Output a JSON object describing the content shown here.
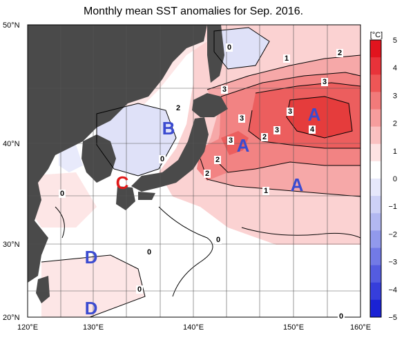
{
  "title": "Monthly mean SST anomalies for Sep. 2016.",
  "lat_labels": [
    "50°N",
    "40°N",
    "30°N",
    "20°N"
  ],
  "lon_labels": [
    "120°E",
    "130°E",
    "140°E",
    "150°E",
    "160°E"
  ],
  "colorbar": {
    "unit": "[°C]",
    "ticks": [
      "5",
      "4",
      "3",
      "2",
      "1",
      "0",
      "−1",
      "−2",
      "−3",
      "−4",
      "−5"
    ],
    "colors": [
      "#e1141e",
      "#e8333a",
      "#ee5656",
      "#f27a7a",
      "#f69d9d",
      "#fac1c1",
      "#fde3e3",
      "#ffffff",
      "#e6e8fb",
      "#cdd1f6",
      "#b2b8f1",
      "#9199ec",
      "#727ae6",
      "#545ce0",
      "#363edb",
      "#1a22d4"
    ]
  },
  "contour_labels": [
    "0",
    "1",
    "2",
    "3",
    "2",
    "3",
    "3",
    "3",
    "4",
    "3",
    "2",
    "3",
    "2",
    "2",
    "1",
    "0",
    "0",
    "0",
    "0",
    "0",
    "0"
  ],
  "region_labels": [
    {
      "text": "A",
      "color": "#3b4bd0"
    },
    {
      "text": "A",
      "color": "#3b4bd0"
    },
    {
      "text": "A",
      "color": "#3b4bd0"
    },
    {
      "text": "B",
      "color": "#3b4bd0"
    },
    {
      "text": "C",
      "color": "#e01a1a"
    },
    {
      "text": "D",
      "color": "#3b4bd0"
    },
    {
      "text": "D",
      "color": "#3b4bd0"
    }
  ]
}
